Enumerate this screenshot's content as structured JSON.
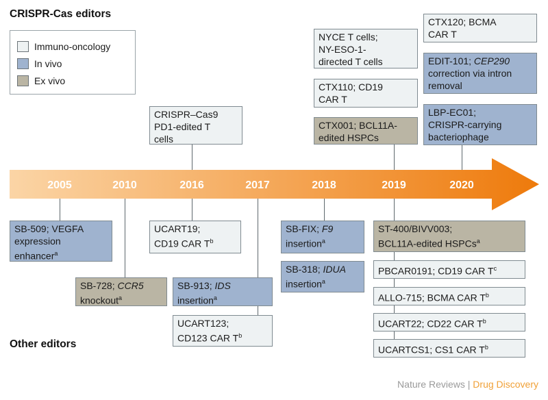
{
  "headings": {
    "top": "CRISPR-Cas editors",
    "bottom": "Other editors"
  },
  "legend": [
    {
      "label": "Immuno-oncology",
      "color": "#eef2f3"
    },
    {
      "label": "In vivo",
      "color": "#9fb3cf"
    },
    {
      "label": "Ex vivo",
      "color": "#bab5a4"
    }
  ],
  "colors": {
    "arrow_start": "#fbd5a6",
    "arrow_end": "#ee7a0b",
    "immuno": "#eef2f3",
    "invivo": "#9fb3cf",
    "exvivo": "#bab5a4"
  },
  "years": [
    "2005",
    "2010",
    "2016",
    "2017",
    "2018",
    "2019",
    "2020"
  ],
  "top_boxes": {
    "b2016": "CRISPR–Cas9\nPD1-edited T\ncells",
    "nyce": "NYCE T cells;\nNY-ESO-1-\ndirected T cells",
    "ctx110": "CTX110; CD19\nCAR T",
    "ctx001": "CTX001; BCL11A-\nedited HSPCs",
    "ctx120": "CTX120; BCMA\nCAR T",
    "edit101_a": "EDIT-101; ",
    "edit101_b": "CEP290",
    "edit101_c": "\ncorrection via intron\nremoval",
    "lbp": "LBP-EC01;\nCRISPR-carrying\nbacteriophage"
  },
  "bottom_boxes": {
    "sb509": "SB-509; VEGFA\nexpression\nenhancer",
    "sb509_sup": "a",
    "sb728_a": "SB-728; ",
    "sb728_b": "CCR5",
    "sb728_c": "\nknockout",
    "sb728_sup": "a",
    "ucart19": "UCART19;\nCD19 CAR T",
    "ucart19_sup": "b",
    "sb913_a": "SB-913; ",
    "sb913_b": "IDS",
    "sb913_c": "\ninsertion",
    "sb913_sup": "a",
    "ucart123": "UCART123;\nCD123 CAR T",
    "ucart123_sup": "b",
    "sbfix_a": "SB-FIX; ",
    "sbfix_b": "F9",
    "sbfix_c": "\ninsertion",
    "sbfix_sup": "a",
    "sb318_a": "SB-318; ",
    "sb318_b": "IDUA",
    "sb318_c": "\ninsertion",
    "sb318_sup": "a",
    "st400": "ST-400/BIVV003;\nBCL11A-edited HSPCs",
    "st400_sup": "a",
    "pbcar": "PBCAR0191; CD19 CAR T",
    "pbcar_sup": "c",
    "allo": "ALLO-715; BCMA CAR T",
    "allo_sup": "b",
    "ucart22": "UCART22; CD22 CAR T",
    "ucart22_sup": "b",
    "ucartcs1": "UCARTCS1; CS1 CAR T",
    "ucartcs1_sup": "b"
  },
  "footer": {
    "publisher": "Nature Reviews",
    "separator": " | ",
    "journal": "Drug Discovery"
  }
}
